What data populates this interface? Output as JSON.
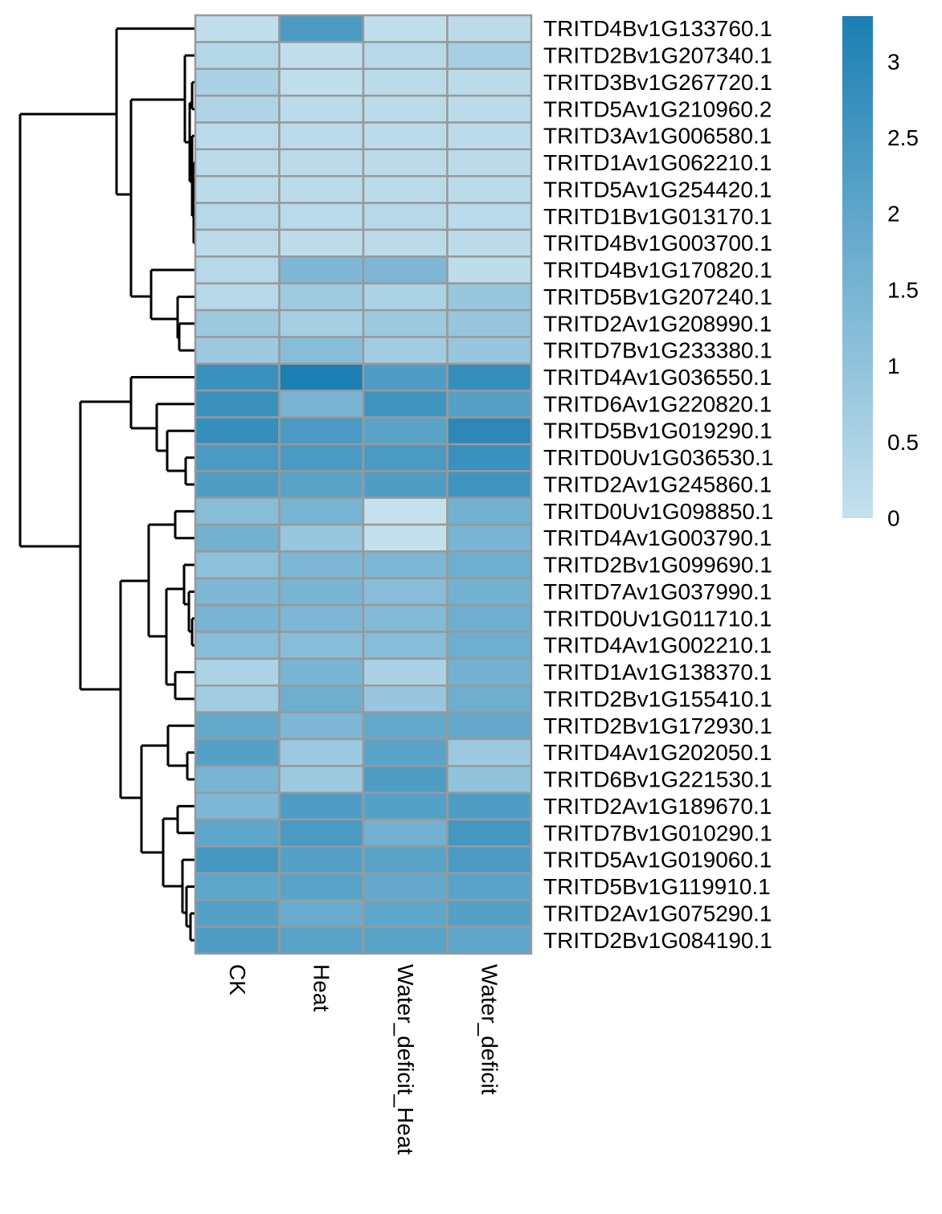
{
  "chart_data": {
    "type": "heatmap",
    "title": "",
    "xlabel": "",
    "ylabel": "",
    "columns": [
      "CK",
      "Heat",
      "Water_deficit_Heat",
      "Water_deficit"
    ],
    "rows": [
      "TRITD4Bv1G133760.1",
      "TRITD2Bv1G207340.1",
      "TRITD3Bv1G267720.1",
      "TRITD5Av1G210960.2",
      "TRITD3Av1G006580.1",
      "TRITD1Av1G062210.1",
      "TRITD5Av1G254420.1",
      "TRITD1Bv1G013170.1",
      "TRITD4Bv1G003700.1",
      "TRITD4Bv1G170820.1",
      "TRITD5Bv1G207240.1",
      "TRITD2Av1G208990.1",
      "TRITD7Bv1G233380.1",
      "TRITD4Av1G036550.1",
      "TRITD6Av1G220820.1",
      "TRITD5Bv1G019290.1",
      "TRITD0Uv1G036530.1",
      "TRITD2Av1G245860.1",
      "TRITD0Uv1G098850.1",
      "TRITD4Av1G003790.1",
      "TRITD2Bv1G099690.1",
      "TRITD7Av1G037990.1",
      "TRITD0Uv1G011710.1",
      "TRITD4Av1G002210.1",
      "TRITD1Av1G138370.1",
      "TRITD2Bv1G155410.1",
      "TRITD2Bv1G172930.1",
      "TRITD4Av1G202050.1",
      "TRITD6Bv1G221530.1",
      "TRITD2Av1G189670.1",
      "TRITD7Bv1G010290.1",
      "TRITD5Av1G019060.1",
      "TRITD5Bv1G119910.1",
      "TRITD2Av1G075290.1",
      "TRITD2Bv1G084190.1"
    ],
    "values": [
      [
        0.1,
        2.4,
        0.1,
        0.2
      ],
      [
        0.35,
        0.1,
        0.3,
        0.6
      ],
      [
        0.55,
        0.1,
        0.2,
        0.2
      ],
      [
        0.45,
        0.2,
        0.2,
        0.2
      ],
      [
        0.2,
        0.2,
        0.2,
        0.2
      ],
      [
        0.2,
        0.2,
        0.2,
        0.2
      ],
      [
        0.2,
        0.2,
        0.2,
        0.2
      ],
      [
        0.3,
        0.25,
        0.3,
        0.25
      ],
      [
        0.2,
        0.15,
        0.2,
        0.2
      ],
      [
        0.3,
        1.4,
        1.4,
        0.15
      ],
      [
        0.3,
        0.75,
        0.5,
        0.9
      ],
      [
        0.8,
        0.6,
        0.8,
        0.9
      ],
      [
        0.8,
        1.2,
        0.7,
        0.9
      ],
      [
        2.7,
        3.3,
        2.3,
        2.8
      ],
      [
        2.7,
        1.5,
        2.6,
        2.2
      ],
      [
        2.8,
        2.4,
        2.1,
        3.0
      ],
      [
        2.4,
        2.4,
        2.4,
        2.7
      ],
      [
        2.3,
        2.1,
        2.3,
        2.6
      ],
      [
        1.2,
        1.5,
        0.0,
        1.6
      ],
      [
        1.6,
        0.9,
        0.05,
        1.5
      ],
      [
        1.1,
        1.4,
        1.4,
        1.7
      ],
      [
        1.4,
        1.5,
        1.2,
        1.6
      ],
      [
        1.5,
        1.4,
        1.3,
        1.7
      ],
      [
        1.2,
        1.2,
        1.2,
        1.7
      ],
      [
        0.5,
        1.5,
        0.55,
        1.6
      ],
      [
        0.7,
        1.7,
        0.9,
        1.7
      ],
      [
        1.9,
        1.4,
        1.9,
        1.9
      ],
      [
        2.2,
        0.8,
        2.1,
        0.8
      ],
      [
        1.5,
        0.8,
        2.3,
        1.0
      ],
      [
        1.4,
        2.3,
        2.2,
        2.3
      ],
      [
        2.0,
        2.4,
        1.6,
        2.5
      ],
      [
        2.5,
        2.2,
        2.1,
        2.4
      ],
      [
        2.0,
        2.1,
        1.9,
        2.1
      ],
      [
        2.2,
        1.8,
        2.0,
        2.2
      ],
      [
        2.3,
        2.1,
        2.1,
        2.0
      ]
    ],
    "color_scale": {
      "min": 0,
      "max": 3.3,
      "low_color": "#c6e1ee",
      "high_color": "#1b7fb3",
      "ticks": [
        "0",
        "0.5",
        "1",
        "1.5",
        "2",
        "2.5",
        "3"
      ],
      "tick_values": [
        0,
        0.5,
        1,
        1.5,
        2,
        2.5,
        3
      ]
    },
    "cell_border_color": "#999999",
    "row_dendrogram": true,
    "legend_placement": "top-right"
  }
}
